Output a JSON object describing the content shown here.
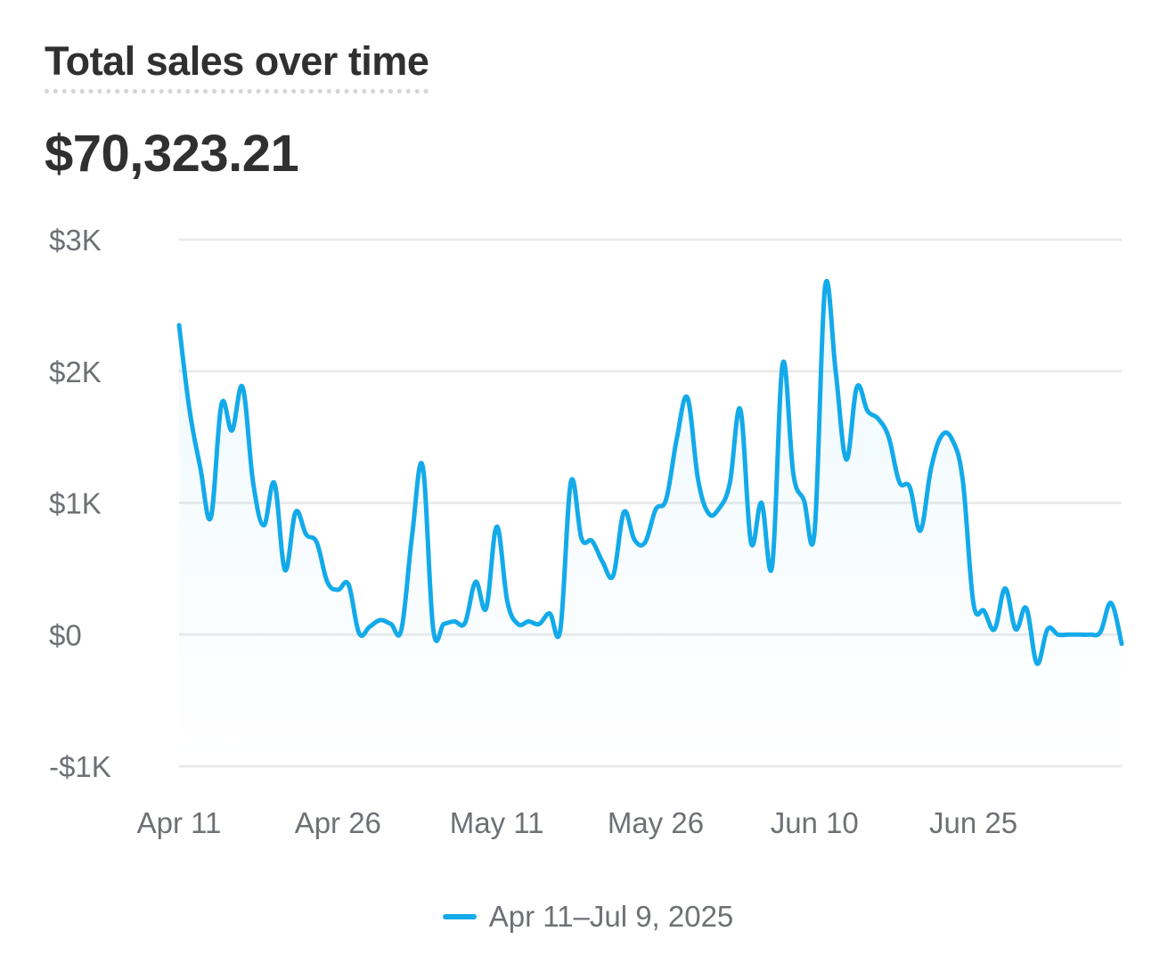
{
  "card": {
    "title": "Total sales over time",
    "total": "$70,323.21"
  },
  "colors": {
    "line": "#13aaea",
    "grid": "#ebebeb",
    "axis_text": "#6d7175"
  },
  "chart_data": {
    "type": "line",
    "title": "Total sales over time",
    "xlabel": "",
    "ylabel": "",
    "ylim": [
      -1000,
      3000
    ],
    "grid": true,
    "legend_position": "bottom-center",
    "y_ticks": [
      {
        "value": 3000,
        "label": "$3K"
      },
      {
        "value": 2000,
        "label": "$2K"
      },
      {
        "value": 1000,
        "label": "$1K"
      },
      {
        "value": 0,
        "label": "$0"
      },
      {
        "value": -1000,
        "label": "-$1K"
      }
    ],
    "x_ticks": [
      {
        "index": 0,
        "label": "Apr 11"
      },
      {
        "index": 15,
        "label": "Apr 26"
      },
      {
        "index": 30,
        "label": "May 11"
      },
      {
        "index": 45,
        "label": "May 26"
      },
      {
        "index": 60,
        "label": "Jun 10"
      },
      {
        "index": 75,
        "label": "Jun 25"
      }
    ],
    "series": [
      {
        "name": "Apr 11–Jul 9, 2025",
        "x_start": "2025-04-11",
        "x_end": "2025-07-09",
        "values": [
          2350,
          1700,
          1270,
          890,
          1750,
          1550,
          1880,
          1150,
          830,
          1150,
          490,
          930,
          760,
          700,
          400,
          340,
          380,
          10,
          60,
          110,
          80,
          40,
          750,
          1280,
          40,
          80,
          100,
          90,
          400,
          200,
          820,
          250,
          80,
          100,
          80,
          160,
          40,
          1160,
          730,
          710,
          550,
          450,
          930,
          720,
          700,
          950,
          1030,
          1490,
          1800,
          1180,
          920,
          960,
          1150,
          1710,
          700,
          1000,
          520,
          2060,
          1220,
          1020,
          780,
          2640,
          2000,
          1330,
          1880,
          1700,
          1640,
          1500,
          1160,
          1120,
          790,
          1260,
          1510,
          1480,
          1170,
          240,
          180,
          40,
          350,
          40,
          200,
          -220,
          40,
          0,
          0,
          0,
          0,
          20,
          240,
          -70
        ]
      }
    ]
  }
}
